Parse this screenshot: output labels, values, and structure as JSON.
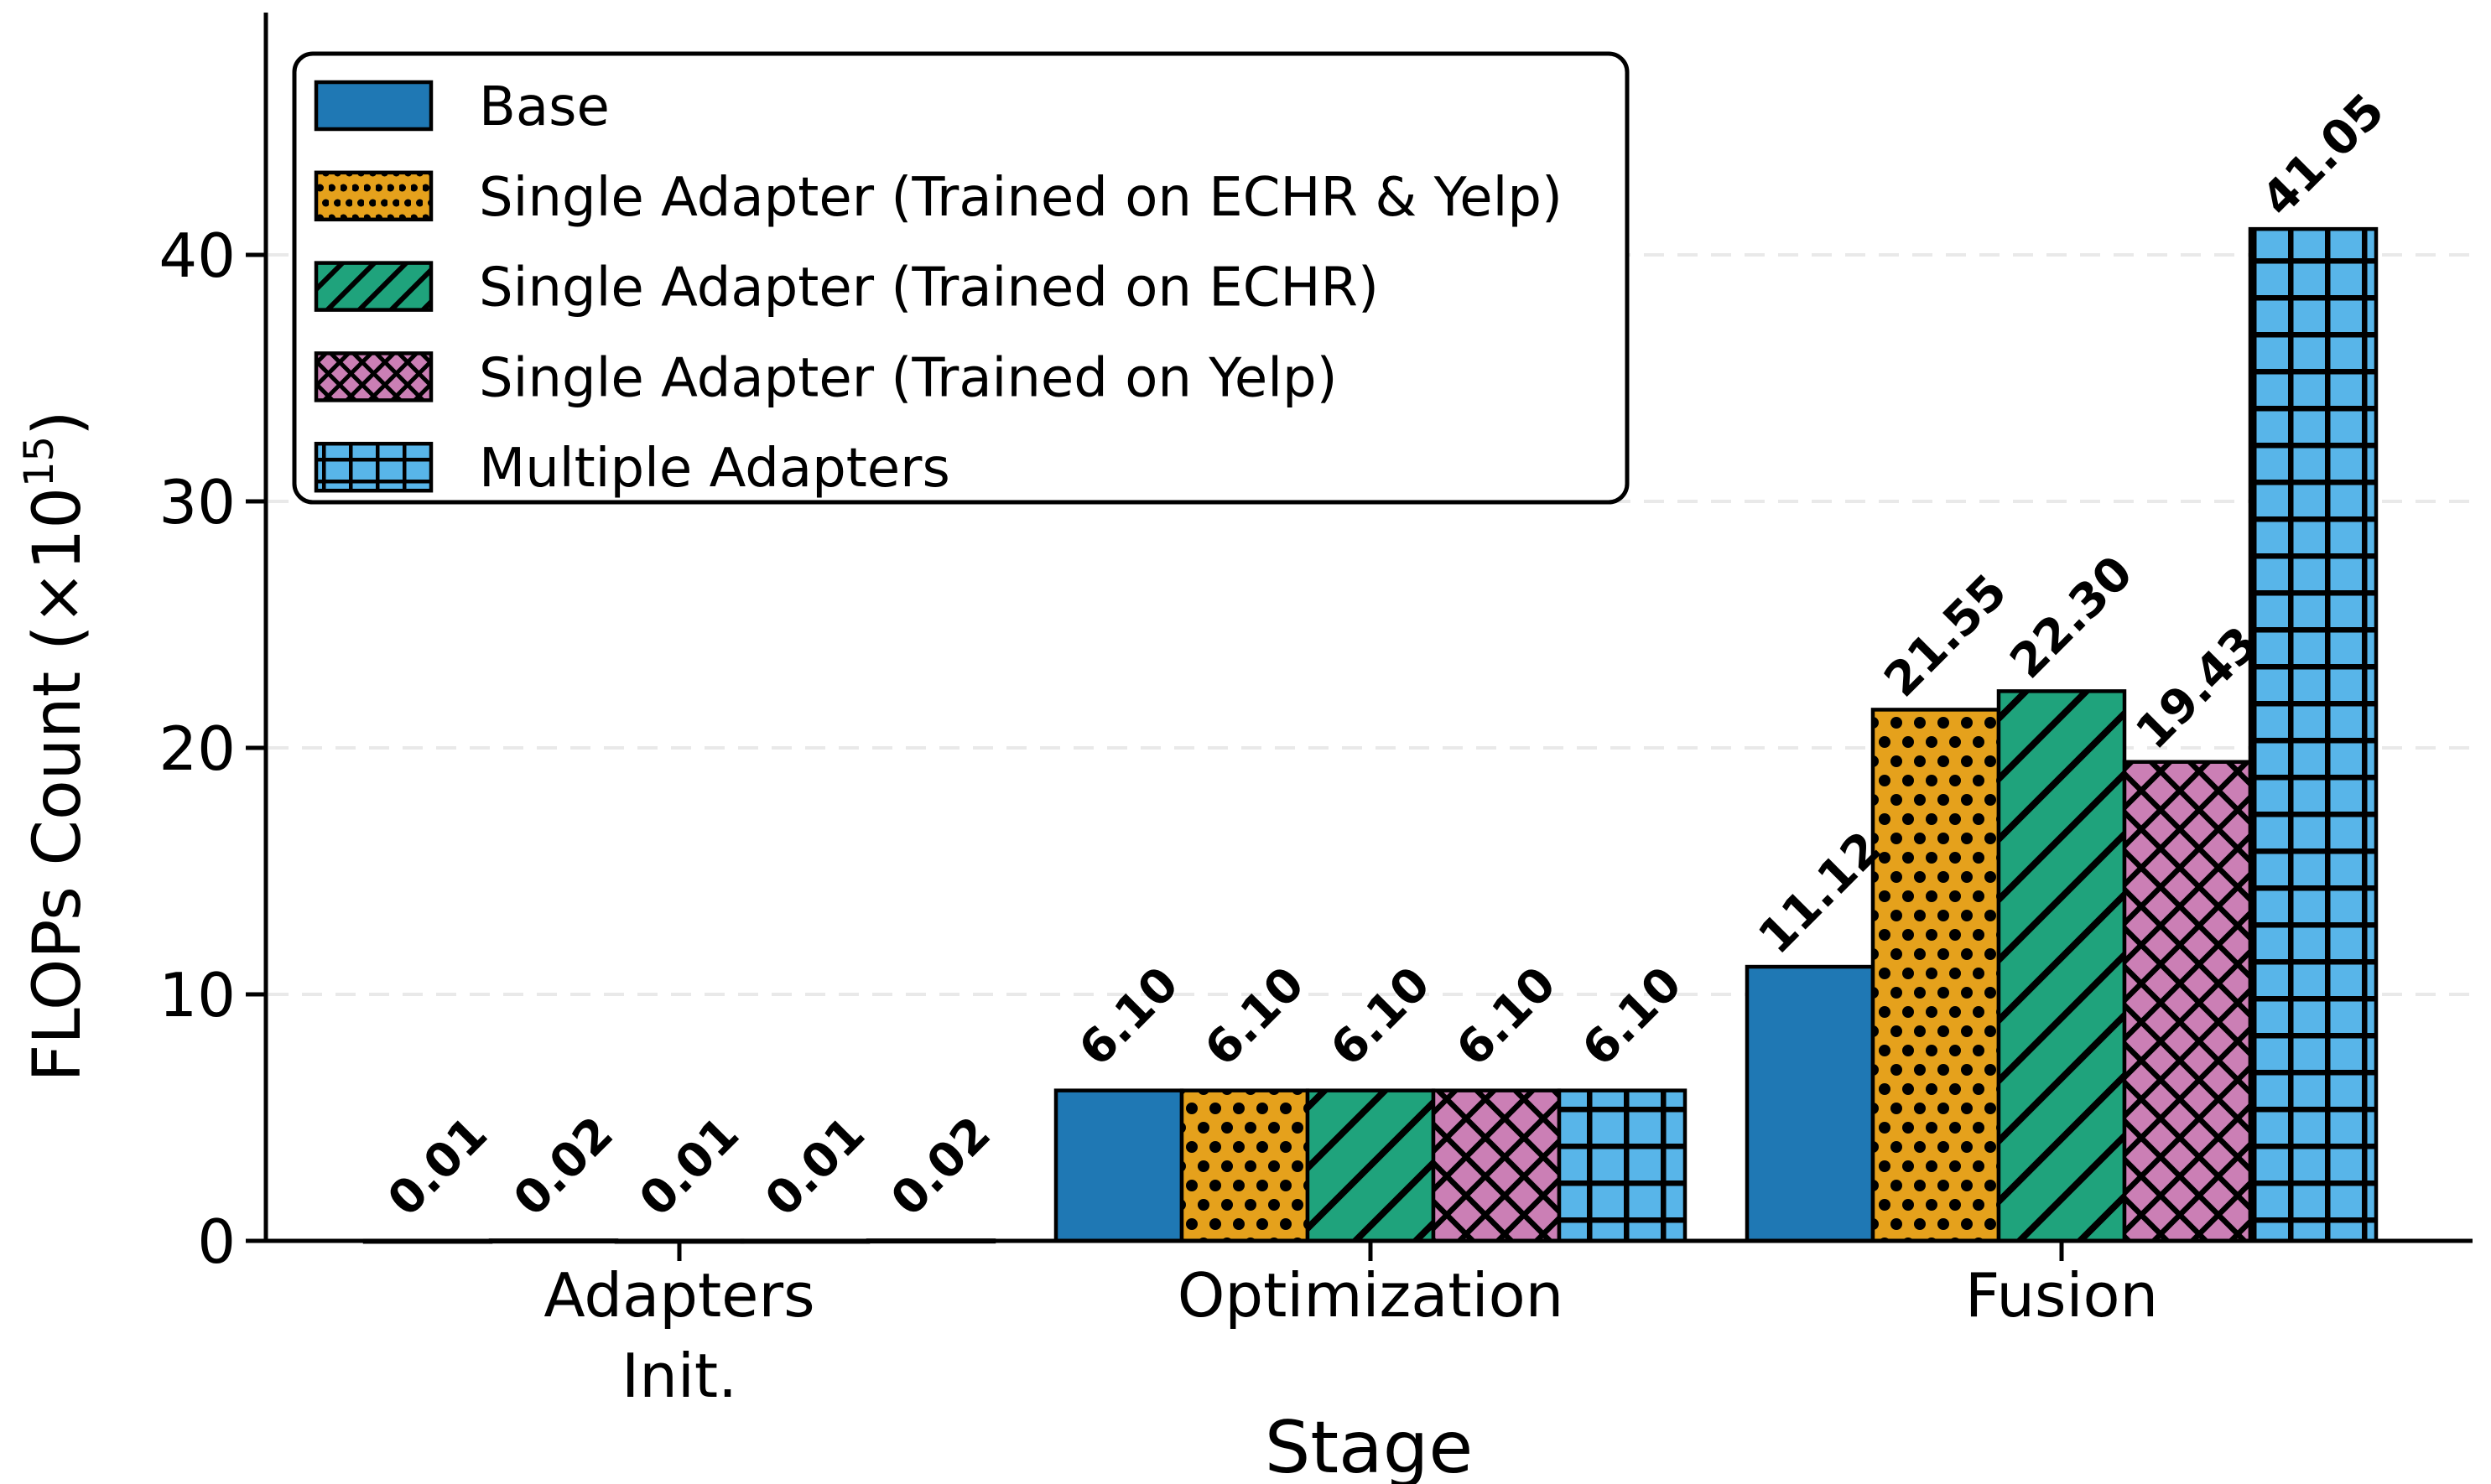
{
  "chart_data": {
    "type": "bar",
    "title": "",
    "xlabel": "Stage",
    "ylabel_prefix": "FLOPs Count (×10",
    "ylabel_exponent": "15",
    "ylabel_suffix": ")",
    "categories": [
      {
        "lines": [
          "Adapters",
          "Init."
        ]
      },
      {
        "lines": [
          "Optimization"
        ]
      },
      {
        "lines": [
          "Fusion"
        ]
      }
    ],
    "series": [
      {
        "name": "Base",
        "color": "#1f78b4",
        "hatch": "none",
        "values": [
          0.01,
          6.1,
          11.12
        ],
        "labels": [
          "0.01",
          "6.10",
          "11.12"
        ]
      },
      {
        "name": "Single Adapter (Trained on ECHR & Yelp)",
        "color": "#e5a11c",
        "hatch": "dots",
        "values": [
          0.02,
          6.1,
          21.55
        ],
        "labels": [
          "0.02",
          "6.10",
          "21.55"
        ]
      },
      {
        "name": "Single Adapter (Trained on ECHR)",
        "color": "#1fa37c",
        "hatch": "diag",
        "values": [
          0.01,
          6.1,
          22.3
        ],
        "labels": [
          "0.01",
          "6.10",
          "22.30"
        ]
      },
      {
        "name": "Single Adapter (Trained on Yelp)",
        "color": "#cb7fb5",
        "hatch": "cross",
        "values": [
          0.01,
          6.1,
          19.43
        ],
        "labels": [
          "0.01",
          "6.10",
          "19.43"
        ]
      },
      {
        "name": "Multiple Adapters",
        "color": "#58b5e9",
        "hatch": "grid",
        "values": [
          0.02,
          6.1,
          41.05
        ],
        "labels": [
          "0.02",
          "6.10",
          "41.05"
        ]
      }
    ],
    "yticks": [
      0,
      10,
      20,
      30,
      40
    ],
    "ylim": [
      0,
      49.5
    ],
    "grid": "horizontal-dashed",
    "grid_color": "#e9e9e9",
    "legend_position": "upper-left",
    "bar_edge_color": "#000000",
    "axis_color": "#000000"
  }
}
